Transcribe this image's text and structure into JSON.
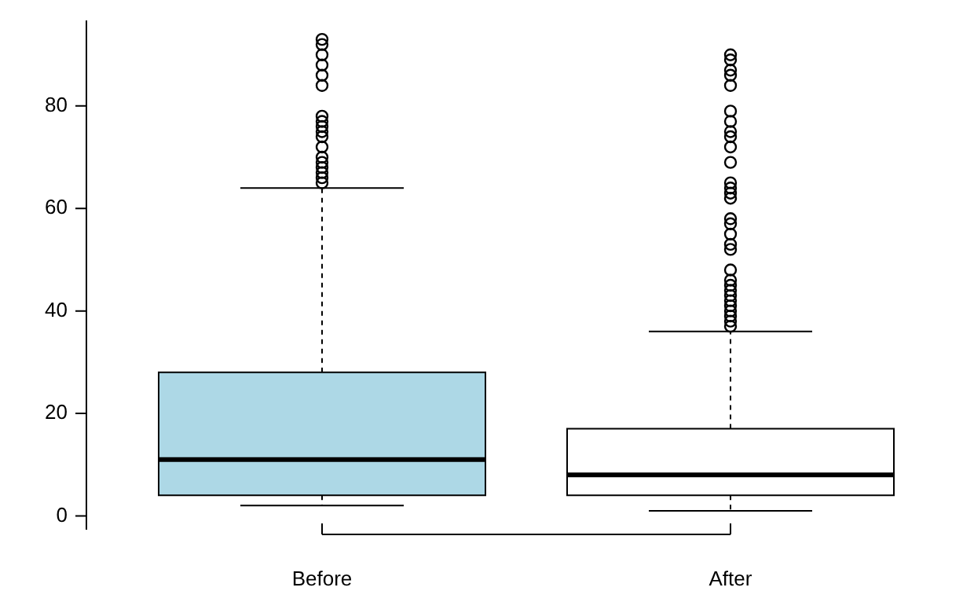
{
  "chart_data": {
    "type": "box",
    "categories": [
      "Before",
      "After"
    ],
    "colors": [
      "#add8e6",
      "#ffffff"
    ],
    "boxes": [
      {
        "low": 2,
        "q1": 4,
        "median": 11,
        "q3": 28,
        "high": 64,
        "outliers": [
          93,
          92,
          90,
          88,
          86,
          84,
          78,
          77,
          76,
          75,
          74,
          72,
          70,
          69,
          68,
          67,
          66,
          65
        ]
      },
      {
        "low": 1,
        "q1": 4,
        "median": 8,
        "q3": 17,
        "high": 36,
        "outliers": [
          90,
          89,
          87,
          86,
          84,
          79,
          77,
          75,
          74,
          72,
          69,
          65,
          64,
          63,
          62,
          58,
          57,
          55,
          53,
          52,
          48,
          46,
          45,
          44,
          43,
          42,
          41,
          40,
          39,
          38,
          37
        ]
      }
    ],
    "ylim": [
      -2.7,
      96.7
    ],
    "yticks": [
      0,
      20,
      40,
      60,
      80
    ],
    "marker": "circle"
  }
}
